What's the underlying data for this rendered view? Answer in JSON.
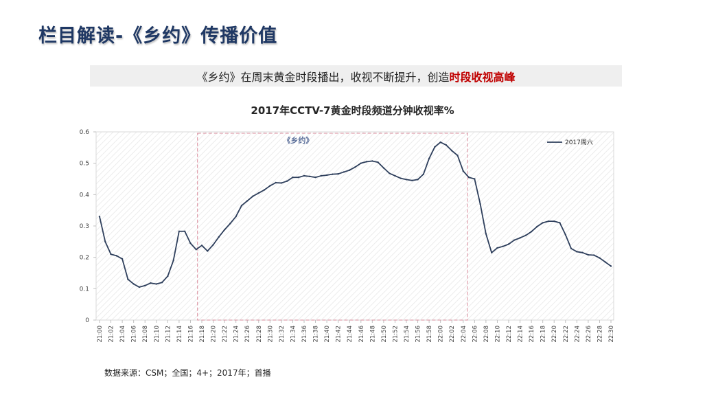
{
  "page": {
    "title": "栏目解读-《乡约》传播价值",
    "banner_text": "《乡约》在周末黄金时段播出，收视不断提升，创造",
    "banner_highlight": "时段收视高峰",
    "source": "数据来源：CSM；全国；4+；2017年；首播"
  },
  "colors": {
    "title": "#1f3864",
    "line": "#2e3f5c",
    "highlight": "#c00000",
    "annotation_box": "#d9899a"
  },
  "chart_data": {
    "type": "line",
    "title": "2017年CCTV-7黄金时段频道分钟收视率%",
    "xlabel": "",
    "ylabel": "",
    "ylim": [
      0,
      0.6
    ],
    "yticks": [
      0,
      0.1,
      0.2,
      0.3,
      0.4,
      0.5,
      0.6
    ],
    "grid": false,
    "legend_position": "top-right",
    "x": [
      "21:00",
      "21:01",
      "21:02",
      "21:03",
      "21:04",
      "21:05",
      "21:06",
      "21:07",
      "21:08",
      "21:09",
      "21:10",
      "21:11",
      "21:12",
      "21:13",
      "21:14",
      "21:15",
      "21:16",
      "21:17",
      "21:18",
      "21:19",
      "21:20",
      "21:21",
      "21:22",
      "21:23",
      "21:24",
      "21:25",
      "21:26",
      "21:27",
      "21:28",
      "21:29",
      "21:30",
      "21:31",
      "21:32",
      "21:33",
      "21:34",
      "21:35",
      "21:36",
      "21:37",
      "21:38",
      "21:39",
      "21:40",
      "21:41",
      "21:42",
      "21:43",
      "21:44",
      "21:45",
      "21:46",
      "21:47",
      "21:48",
      "21:49",
      "21:50",
      "21:51",
      "21:52",
      "21:53",
      "21:54",
      "21:55",
      "21:56",
      "21:57",
      "21:58",
      "21:59",
      "22:00",
      "22:01",
      "22:02",
      "22:03",
      "22:04",
      "22:05",
      "22:06",
      "22:07",
      "22:08",
      "22:09",
      "22:10",
      "22:11",
      "22:12",
      "22:13",
      "22:14",
      "22:15",
      "22:16",
      "22:17",
      "22:18",
      "22:19",
      "22:20",
      "22:21",
      "22:22",
      "22:23",
      "22:24",
      "22:25",
      "22:26",
      "22:27",
      "22:28",
      "22:29",
      "22:30"
    ],
    "xtick_labels": [
      "21:00",
      "21:02",
      "21:04",
      "21:06",
      "21:08",
      "21:10",
      "21:12",
      "21:14",
      "21:16",
      "21:18",
      "21:20",
      "21:22",
      "21:24",
      "21:26",
      "21:28",
      "21:30",
      "21:32",
      "21:34",
      "21:36",
      "21:38",
      "21:40",
      "21:42",
      "21:44",
      "21:46",
      "21:48",
      "21:50",
      "21:52",
      "21:54",
      "21:56",
      "21:58",
      "22:00",
      "22:02",
      "22:04",
      "22:06",
      "22:08",
      "22:10",
      "22:12",
      "22:14",
      "22:16",
      "22:18",
      "22:20",
      "22:22",
      "22:24",
      "22:26",
      "22:28",
      "22:30"
    ],
    "series": [
      {
        "name": "2017周六",
        "values": [
          0.33,
          0.25,
          0.21,
          0.205,
          0.195,
          0.13,
          0.115,
          0.105,
          0.11,
          0.118,
          0.115,
          0.12,
          0.14,
          0.19,
          0.283,
          0.283,
          0.245,
          0.225,
          0.238,
          0.22,
          0.24,
          0.265,
          0.288,
          0.308,
          0.33,
          0.365,
          0.38,
          0.395,
          0.405,
          0.415,
          0.428,
          0.438,
          0.437,
          0.443,
          0.455,
          0.455,
          0.46,
          0.458,
          0.455,
          0.46,
          0.462,
          0.465,
          0.466,
          0.472,
          0.478,
          0.488,
          0.5,
          0.505,
          0.507,
          0.503,
          0.485,
          0.468,
          0.46,
          0.452,
          0.448,
          0.445,
          0.448,
          0.465,
          0.515,
          0.552,
          0.567,
          0.558,
          0.54,
          0.525,
          0.475,
          0.455,
          0.45,
          0.37,
          0.275,
          0.215,
          0.23,
          0.235,
          0.242,
          0.255,
          0.262,
          0.27,
          0.282,
          0.298,
          0.31,
          0.315,
          0.315,
          0.31,
          0.272,
          0.228,
          0.218,
          0.215,
          0.208,
          0.207,
          0.198,
          0.185,
          0.172
        ]
      }
    ],
    "annotations": [
      {
        "label": "《乡约》",
        "x_start": "21:17",
        "x_end": "22:05"
      }
    ]
  }
}
